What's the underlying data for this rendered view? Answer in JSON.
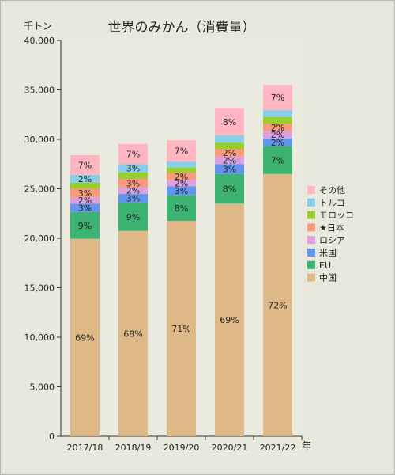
{
  "chart_data": {
    "type": "bar",
    "stacked": true,
    "title": "世界のみかん（消費量）",
    "ylabel": "千トン",
    "xlabel": "年",
    "categories": [
      "2017/18",
      "2018/19",
      "2019/20",
      "2020/21",
      "2021/22"
    ],
    "ylim": [
      0,
      40000
    ],
    "yticks": [
      0,
      5000,
      10000,
      15000,
      20000,
      25000,
      30000,
      35000,
      40000
    ],
    "ytick_labels": [
      "0",
      "5,000",
      "10,000",
      "15,000",
      "20,000",
      "25,000",
      "30,000",
      "35,000",
      "40,000"
    ],
    "grid": false,
    "legend_position": "right",
    "series": [
      {
        "name": "中国",
        "color": "#deb887",
        "values": [
          19950,
          20750,
          21750,
          23500,
          26500
        ],
        "labels": [
          "69%",
          "68%",
          "71%",
          "69%",
          "72%"
        ]
      },
      {
        "name": "EU",
        "color": "#3cb371",
        "values": [
          2700,
          2850,
          2600,
          3000,
          2800
        ],
        "labels": [
          "9%",
          "9%",
          "8%",
          "8%",
          "7%"
        ]
      },
      {
        "name": "米国",
        "color": "#6495ed",
        "values": [
          850,
          900,
          900,
          1000,
          800
        ],
        "labels": [
          "3%",
          "3%",
          "3%",
          "3%",
          "2%"
        ]
      },
      {
        "name": "ロシア",
        "color": "#dda0dd",
        "values": [
          650,
          650,
          650,
          750,
          750
        ],
        "labels": [
          "2%",
          "2%",
          "2%",
          "2%",
          "2%"
        ]
      },
      {
        "name": "★日本",
        "color": "#fa9a7a",
        "values": [
          850,
          850,
          700,
          750,
          700
        ],
        "labels": [
          "3%",
          "3%",
          "2%",
          "2%",
          "2%"
        ]
      },
      {
        "name": "モロッコ",
        "color": "#9acd32",
        "values": [
          600,
          650,
          550,
          650,
          700
        ],
        "labels": [
          "",
          "",
          "",
          "",
          ""
        ]
      },
      {
        "name": "トルコ",
        "color": "#87ceeb",
        "values": [
          800,
          850,
          600,
          750,
          700
        ],
        "labels": [
          "2%",
          "3%",
          "",
          "",
          ""
        ]
      },
      {
        "name": "その他",
        "color": "#ffb6c1",
        "values": [
          2000,
          2050,
          2150,
          2750,
          2550
        ],
        "labels": [
          "7%",
          "7%",
          "7%",
          "8%",
          "7%"
        ]
      }
    ],
    "legend_order": [
      "その他",
      "トルコ",
      "モロッコ",
      "★日本",
      "ロシア",
      "米国",
      "EU",
      "中国"
    ]
  }
}
